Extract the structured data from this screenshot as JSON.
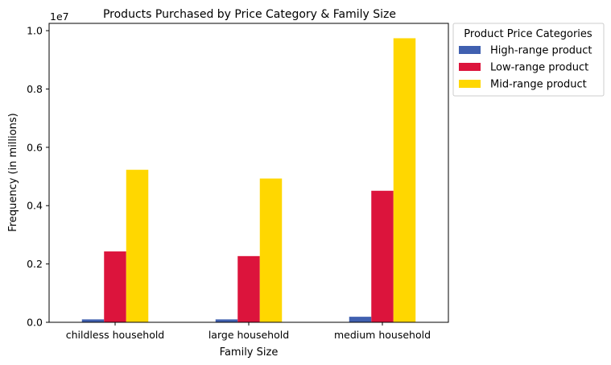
{
  "chart_data": {
    "type": "bar",
    "title": "Products Purchased by Price Category & Family Size",
    "xlabel": "Family Size",
    "ylabel": "Frequency (in millions)",
    "offset_text": "1e7",
    "categories": [
      "childless household",
      "large household",
      "medium household"
    ],
    "series": [
      {
        "name": "High-range product",
        "color": "#4060b0",
        "values": [
          100000,
          100000,
          190000
        ]
      },
      {
        "name": "Low-range product",
        "color": "#dc143c",
        "values": [
          2430000,
          2270000,
          4510000
        ]
      },
      {
        "name": "Mid-range product",
        "color": "#ffd700",
        "values": [
          5230000,
          4930000,
          9740000
        ]
      }
    ],
    "ylim": [
      0,
      10250000
    ],
    "yticks": [
      0,
      2000000,
      4000000,
      6000000,
      8000000,
      10000000
    ],
    "ytick_labels": [
      "0.0",
      "0.2",
      "0.4",
      "0.6",
      "0.8",
      "1.0"
    ],
    "grid": false,
    "legend": {
      "title": "Product Price Categories",
      "placement": "outside-top-right"
    }
  }
}
